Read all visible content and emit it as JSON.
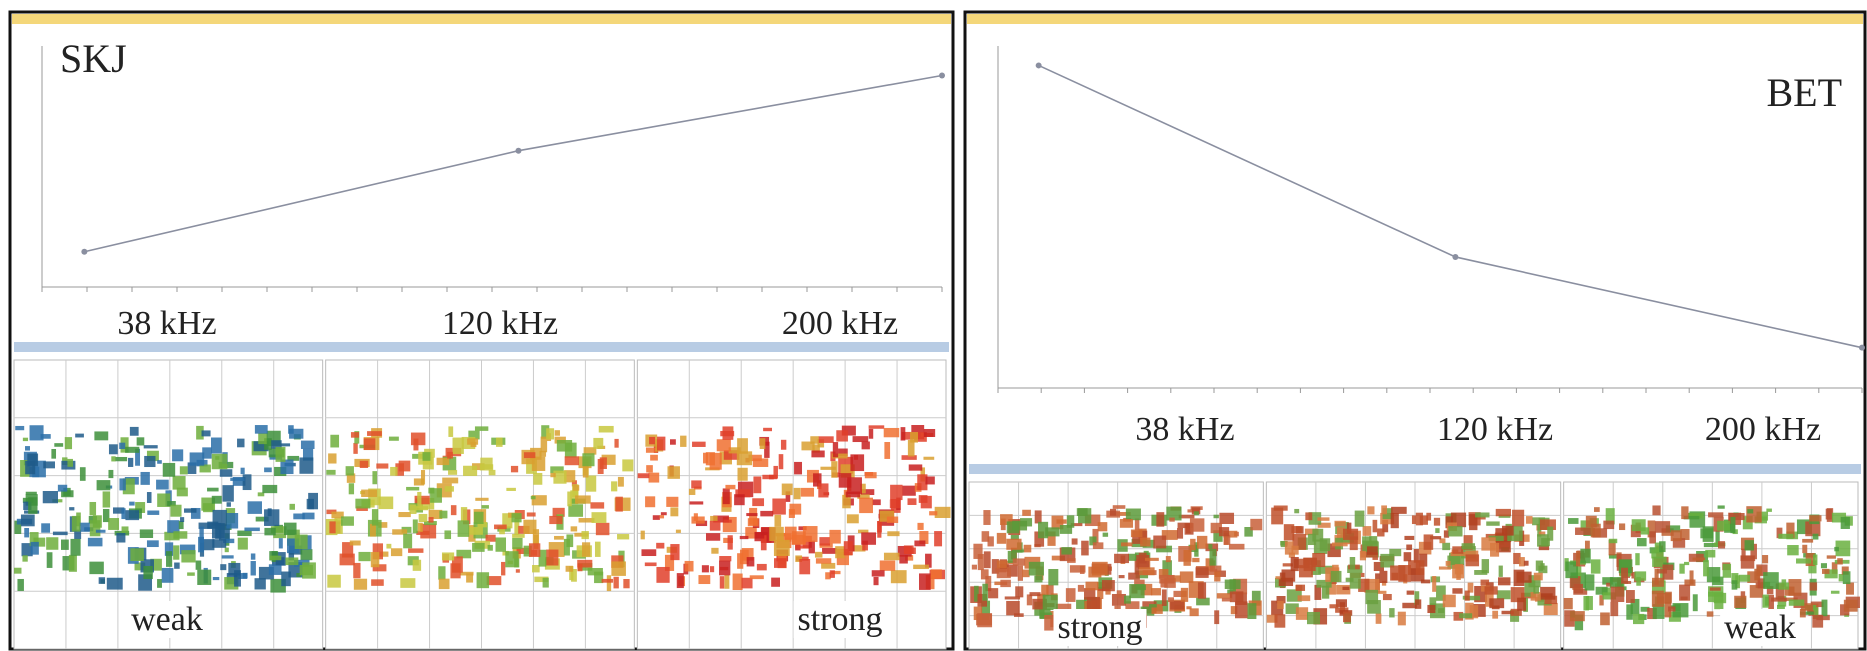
{
  "panels": [
    {
      "species": "SKJ",
      "frequencies": [
        "38 kHz",
        "120 kHz",
        "200 kHz"
      ],
      "echo_labels": [
        "weak",
        "strong"
      ],
      "chart": {
        "type": "line",
        "x": [
          38,
          120,
          200
        ],
        "values": [
          1.5,
          5.8,
          9
        ],
        "xlim": [
          30,
          200
        ],
        "ylim": [
          0,
          10
        ]
      }
    },
    {
      "species": "BET",
      "frequencies": [
        "38 kHz",
        "120 kHz",
        "200 kHz"
      ],
      "echo_labels": [
        "strong",
        "weak"
      ],
      "chart": {
        "type": "line",
        "x": [
          38,
          120,
          200
        ],
        "values": [
          9.6,
          3.9,
          1.2
        ],
        "xlim": [
          30,
          200
        ],
        "ylim": [
          0,
          10
        ]
      }
    }
  ]
}
